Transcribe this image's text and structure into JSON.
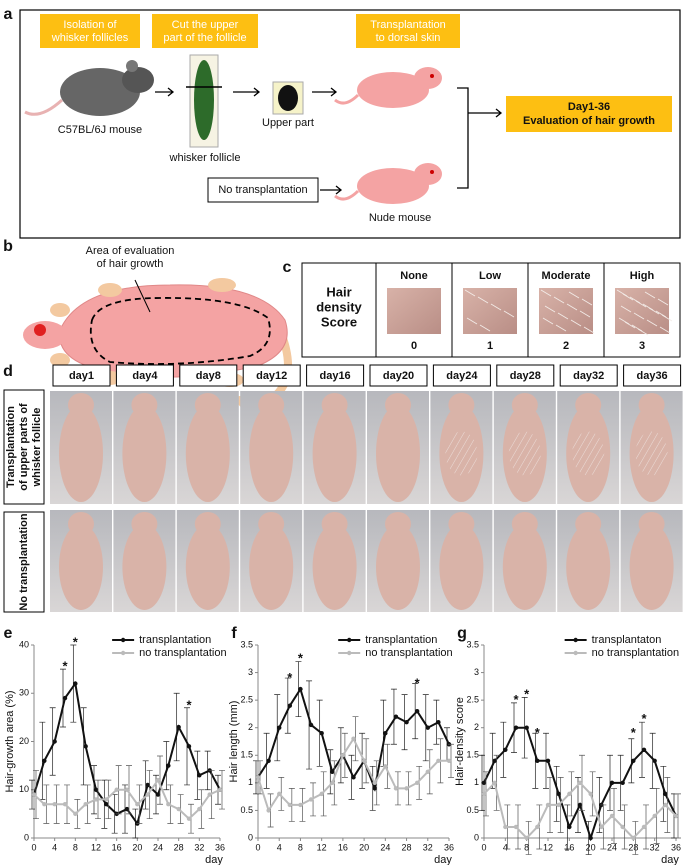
{
  "panel_labels": [
    "a",
    "b",
    "c",
    "d",
    "e",
    "f",
    "g"
  ],
  "panel_a": {
    "steps": [
      [
        "Isolation of",
        "whisker follicles"
      ],
      [
        "Cut the upper",
        "part of the follicle"
      ],
      [
        "Transplantation",
        "to dorsal skin"
      ]
    ],
    "donor": "C57BL/6J mouse",
    "follicle": "whisker follicle",
    "upper": "Upper part",
    "control": "No transplantation",
    "recipient": "Nude mouse",
    "outcome": [
      "Day1-36",
      "Evaluation of hair growth"
    ]
  },
  "panel_b": {
    "area_label": [
      "Area of evaluation",
      "of hair growth"
    ]
  },
  "panel_c": {
    "title": [
      "Hair",
      "density",
      "Score"
    ],
    "levels": [
      {
        "name": "None",
        "score": "0"
      },
      {
        "name": "Low",
        "score": "1"
      },
      {
        "name": "Moderate",
        "score": "2"
      },
      {
        "name": "High",
        "score": "3"
      }
    ]
  },
  "panel_d": {
    "days": [
      "day1",
      "day4",
      "day8",
      "day12",
      "day16",
      "day20",
      "day24",
      "day28",
      "day32",
      "day36"
    ],
    "rows": [
      [
        "Transplantation",
        "of upper parts of",
        "whisker follicle"
      ],
      [
        "No transplantation"
      ]
    ]
  },
  "chart_data": [
    {
      "type": "line",
      "ylabel": "Hair-growth area (%)",
      "xlabel": "day",
      "x": [
        0,
        2,
        4,
        6,
        8,
        10,
        12,
        14,
        16,
        18,
        20,
        22,
        24,
        26,
        28,
        30,
        32,
        34,
        36
      ],
      "xlim": [
        0,
        36
      ],
      "xticks": [
        0,
        4,
        8,
        12,
        16,
        20,
        24,
        28,
        32,
        36
      ],
      "ylim": [
        0,
        40
      ],
      "yticks": [
        0,
        10,
        20,
        30,
        40
      ],
      "legend": "upper right",
      "series": [
        {
          "name": "transplantation",
          "color": "#111111",
          "values": [
            9,
            16,
            20,
            29,
            32,
            19,
            10,
            7,
            5,
            6,
            3,
            11,
            9,
            15,
            23,
            19,
            13,
            14,
            10
          ],
          "errors": [
            3,
            8,
            7,
            6,
            8,
            8,
            5,
            5,
            4,
            5,
            3,
            5,
            4,
            5,
            7,
            8,
            5,
            4,
            3
          ]
        },
        {
          "name": "no transplantation",
          "color": "#bbbbbb",
          "values": [
            9,
            7,
            7,
            7,
            5,
            7,
            8,
            8,
            10,
            10,
            7,
            9,
            12,
            7,
            6,
            4,
            6,
            9,
            10
          ],
          "errors": [
            5,
            4,
            4,
            4,
            3,
            4,
            4,
            4,
            5,
            5,
            4,
            5,
            5,
            4,
            3,
            3,
            4,
            5,
            4
          ]
        }
      ],
      "annotations": [
        {
          "x": 6,
          "y": 36,
          "text": "*"
        },
        {
          "x": 8,
          "y": 41,
          "text": "*"
        },
        {
          "x": 30,
          "y": 28,
          "text": "*"
        }
      ]
    },
    {
      "type": "line",
      "ylabel": "Hair length (mm)",
      "xlabel": "day",
      "x": [
        0,
        2,
        4,
        6,
        8,
        10,
        12,
        14,
        16,
        18,
        20,
        22,
        24,
        26,
        28,
        30,
        32,
        34,
        36
      ],
      "xlim": [
        0,
        36
      ],
      "xticks": [
        0,
        4,
        8,
        12,
        16,
        20,
        24,
        28,
        32,
        36
      ],
      "ylim": [
        0,
        3.5
      ],
      "yticks": [
        0,
        0.5,
        1,
        1.5,
        2,
        2.5,
        3,
        3.5
      ],
      "legend": "upper right",
      "series": [
        {
          "name": "transplantation",
          "color": "#111111",
          "values": [
            1.1,
            1.4,
            2.0,
            2.4,
            2.7,
            2.05,
            1.9,
            1.2,
            1.5,
            1.1,
            1.4,
            0.9,
            1.9,
            2.2,
            2.1,
            2.3,
            2.0,
            2.1,
            1.7
          ],
          "errors": [
            0.3,
            0.5,
            0.6,
            0.5,
            0.5,
            0.8,
            0.6,
            0.4,
            0.5,
            0.4,
            0.5,
            0.4,
            0.6,
            0.5,
            0.5,
            0.5,
            0.6,
            0.4,
            0.3
          ]
        },
        {
          "name": "no transplantation",
          "color": "#bbbbbb",
          "values": [
            1.1,
            0.5,
            0.8,
            0.6,
            0.6,
            0.7,
            0.8,
            1.0,
            1.5,
            1.8,
            1.4,
            1.0,
            1.3,
            0.9,
            0.9,
            1.0,
            1.2,
            1.4,
            1.4
          ],
          "errors": [
            0.3,
            0.3,
            0.3,
            0.3,
            0.3,
            0.3,
            0.4,
            0.4,
            0.4,
            0.4,
            0.4,
            0.4,
            0.4,
            0.3,
            0.3,
            0.3,
            0.4,
            0.4,
            0.3
          ]
        }
      ],
      "annotations": [
        {
          "x": 6,
          "y": 2.95,
          "text": "*"
        },
        {
          "x": 8,
          "y": 3.3,
          "text": "*"
        },
        {
          "x": 30,
          "y": 2.85,
          "text": "*"
        }
      ]
    },
    {
      "type": "line",
      "ylabel": "Hair-density score",
      "xlabel": "day",
      "x": [
        0,
        2,
        4,
        6,
        8,
        10,
        12,
        14,
        16,
        18,
        20,
        22,
        24,
        26,
        28,
        30,
        32,
        34,
        36
      ],
      "xlim": [
        0,
        36
      ],
      "xticks": [
        0,
        4,
        8,
        12,
        16,
        20,
        24,
        28,
        32,
        36
      ],
      "ylim": [
        0,
        3.5
      ],
      "yticks": [
        0,
        0.5,
        1,
        1.5,
        2,
        2.5,
        3,
        3.5
      ],
      "legend": "upper right",
      "series": [
        {
          "name": "transplantaton",
          "color": "#111111",
          "values": [
            1.0,
            1.4,
            1.6,
            2.0,
            2.0,
            1.4,
            1.4,
            0.8,
            0.2,
            0.6,
            0,
            0.6,
            1.0,
            1.0,
            1.4,
            1.6,
            1.4,
            0.8,
            0.4
          ],
          "errors": [
            0.5,
            0.5,
            0.5,
            0.45,
            0.55,
            0.5,
            0.5,
            0.5,
            0.4,
            0.5,
            0.3,
            0.5,
            0.5,
            0.5,
            0.4,
            0.5,
            0.5,
            0.5,
            0.4
          ]
        },
        {
          "name": "no transplantation",
          "color": "#bbbbbb",
          "values": [
            0.8,
            1.0,
            0.2,
            0.2,
            0,
            0.2,
            0.6,
            0.6,
            0.8,
            1.0,
            0.8,
            0.2,
            0.4,
            0.2,
            0,
            0.2,
            0.4,
            0.6,
            0.4
          ],
          "errors": [
            0.4,
            0.5,
            0.4,
            0.4,
            0.3,
            0.4,
            0.5,
            0.5,
            0.4,
            0.5,
            0.4,
            0.4,
            0.5,
            0.4,
            0.3,
            0.4,
            0.5,
            0.5,
            0.4
          ]
        }
      ],
      "annotations": [
        {
          "x": 6,
          "y": 2.55,
          "text": "*"
        },
        {
          "x": 8,
          "y": 2.65,
          "text": "*"
        },
        {
          "x": 10,
          "y": 1.95,
          "text": "*"
        },
        {
          "x": 28,
          "y": 1.95,
          "text": "*"
        },
        {
          "x": 30,
          "y": 2.2,
          "text": "*"
        }
      ]
    }
  ]
}
